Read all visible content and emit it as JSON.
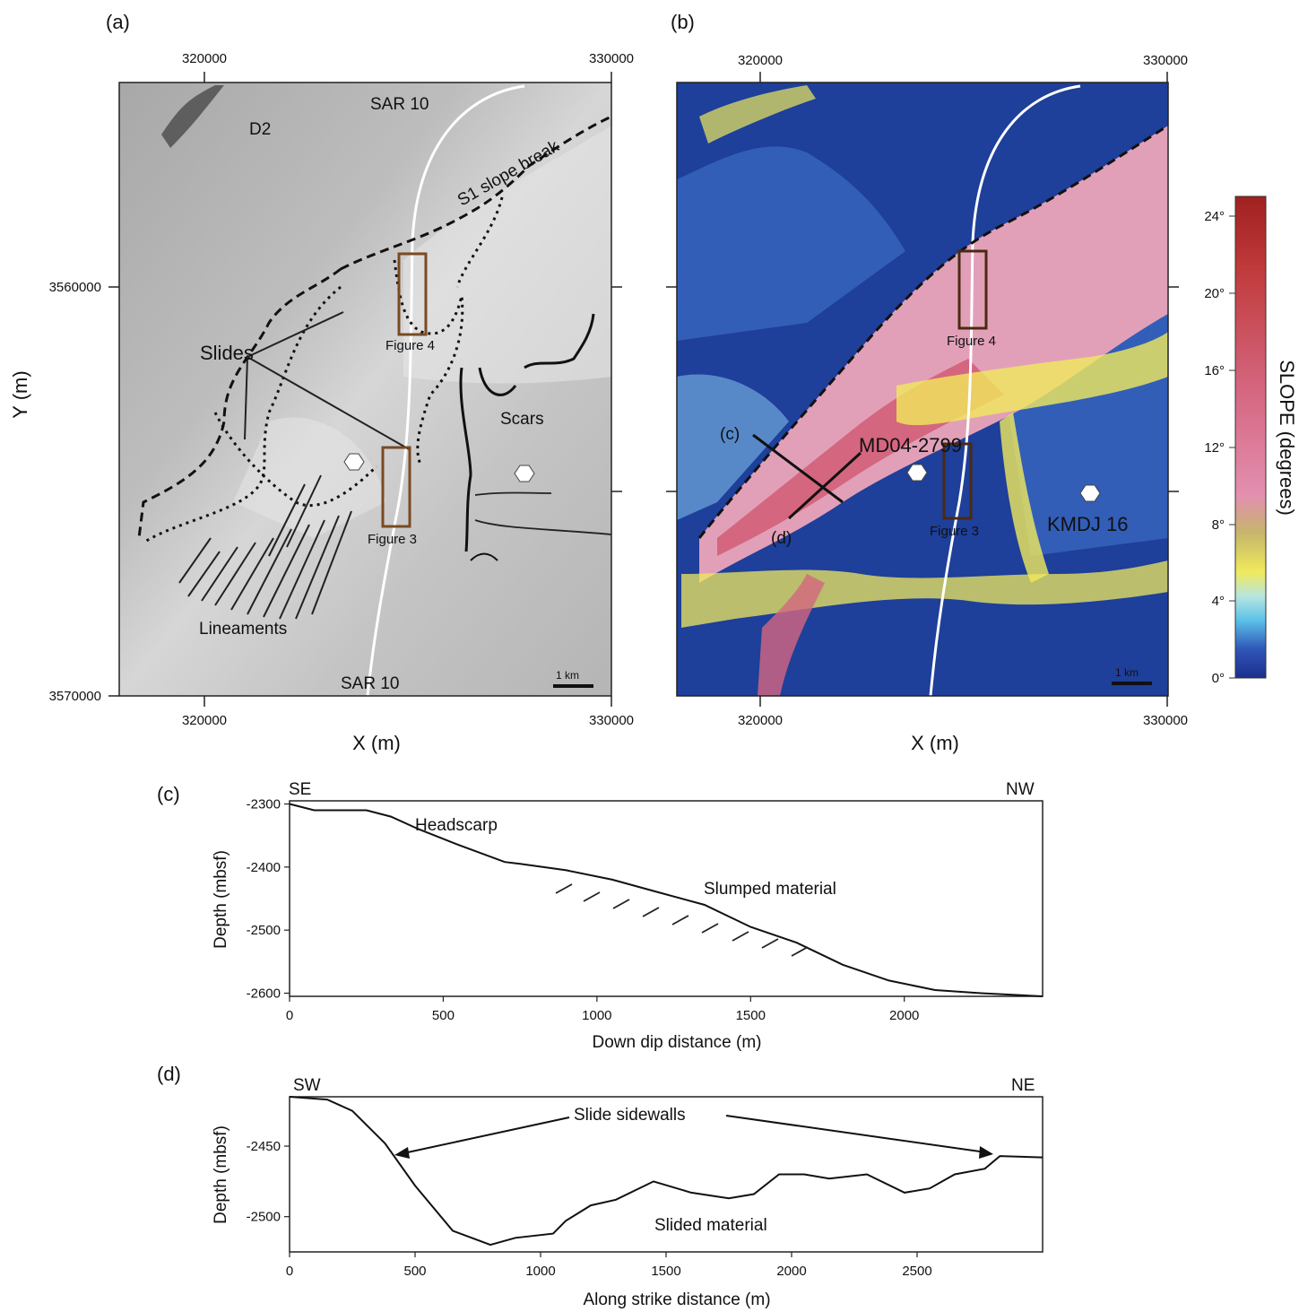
{
  "panel_a": {
    "label": "(a)",
    "x_top_ticks": [
      "320000",
      "330000"
    ],
    "x_bottom_ticks": [
      "320000",
      "330000"
    ],
    "y_ticks": [
      "3560000",
      "3570000"
    ],
    "x_axis_label": "X (m)",
    "y_axis_label": "Y (m)",
    "labels": {
      "sar10_top": "SAR 10",
      "sar10_bottom": "SAR 10",
      "d2": "D2",
      "slope_break": "S1 slope break",
      "slides": "Slides",
      "scars": "Scars",
      "lineaments": "Lineaments",
      "figure4": "Figure 4",
      "figure3": "Figure 3",
      "scale": "1 km"
    }
  },
  "panel_b": {
    "label": "(b)",
    "x_top_ticks": [
      "320000",
      "330000"
    ],
    "x_bottom_ticks": [
      "320000",
      "330000"
    ],
    "x_axis_label": "X (m)",
    "labels": {
      "figure4": "Figure 4",
      "figure3": "Figure 3",
      "core1": "MD04-2799",
      "core2": "KMDJ 16",
      "profile_c": "(c)",
      "profile_d": "(d)",
      "scale": "1 km"
    },
    "colorbar": {
      "title": "SLOPE (degrees)",
      "ticks": [
        "24°",
        "20°",
        "16°",
        "12°",
        "8°",
        "4°",
        "0°"
      ],
      "colors": [
        "#1b2f8c",
        "#3f6fc9",
        "#5cc2e8",
        "#b7e6e0",
        "#f0ea5c",
        "#c6b66a",
        "#e38fb0",
        "#d4667f",
        "#c03a3a",
        "#a02020"
      ]
    }
  },
  "panel_c": {
    "label": "(c)",
    "left_dir": "SE",
    "right_dir": "NW",
    "y_axis_label": "Depth (mbsf)",
    "x_axis_label": "Down dip distance (m)",
    "y_ticks": [
      "-2300",
      "-2400",
      "-2500",
      "-2600"
    ],
    "x_ticks": [
      "0",
      "500",
      "1000",
      "1500",
      "2000"
    ],
    "annotations": {
      "headscarp": "Headscarp",
      "slumped": "Slumped material"
    }
  },
  "panel_d": {
    "label": "(d)",
    "left_dir": "SW",
    "right_dir": "NE",
    "y_axis_label": "Depth (mbsf)",
    "x_axis_label": "Along strike distance (m)",
    "y_ticks": [
      "-2450",
      "-2500"
    ],
    "x_ticks": [
      "0",
      "500",
      "1000",
      "1500",
      "2000",
      "2500"
    ],
    "annotations": {
      "sidewalls": "Slide sidewalls",
      "slided": "Slided material"
    }
  },
  "chart_data": [
    {
      "type": "line",
      "xlabel": "Down dip distance (m)",
      "ylabel": "Depth (mbsf)",
      "xlim": [
        0,
        2450
      ],
      "ylim": [
        -2605,
        -2295
      ],
      "x": [
        0,
        80,
        250,
        330,
        420,
        550,
        700,
        750,
        900,
        1050,
        1200,
        1350,
        1500,
        1650,
        1800,
        1950,
        2100,
        2250,
        2450
      ],
      "y": [
        -2300,
        -2310,
        -2310,
        -2320,
        -2340,
        -2365,
        -2392,
        -2395,
        -2405,
        -2420,
        -2440,
        -2460,
        -2495,
        -2520,
        -2555,
        -2580,
        -2595,
        -2600,
        -2605
      ]
    },
    {
      "type": "line",
      "xlabel": "Along strike distance (m)",
      "ylabel": "Depth (mbsf)",
      "xlim": [
        0,
        3000
      ],
      "ylim": [
        -2525,
        -2415
      ],
      "x": [
        0,
        150,
        250,
        380,
        500,
        650,
        800,
        900,
        1050,
        1100,
        1200,
        1300,
        1450,
        1600,
        1750,
        1850,
        1950,
        2050,
        2150,
        2300,
        2450,
        2550,
        2650,
        2770,
        2830,
        3000
      ],
      "y": [
        -2415,
        -2417,
        -2425,
        -2448,
        -2478,
        -2510,
        -2520,
        -2515,
        -2512,
        -2503,
        -2492,
        -2488,
        -2475,
        -2483,
        -2487,
        -2484,
        -2470,
        -2470,
        -2473,
        -2470,
        -2483,
        -2480,
        -2470,
        -2466,
        -2457,
        -2458
      ]
    }
  ]
}
